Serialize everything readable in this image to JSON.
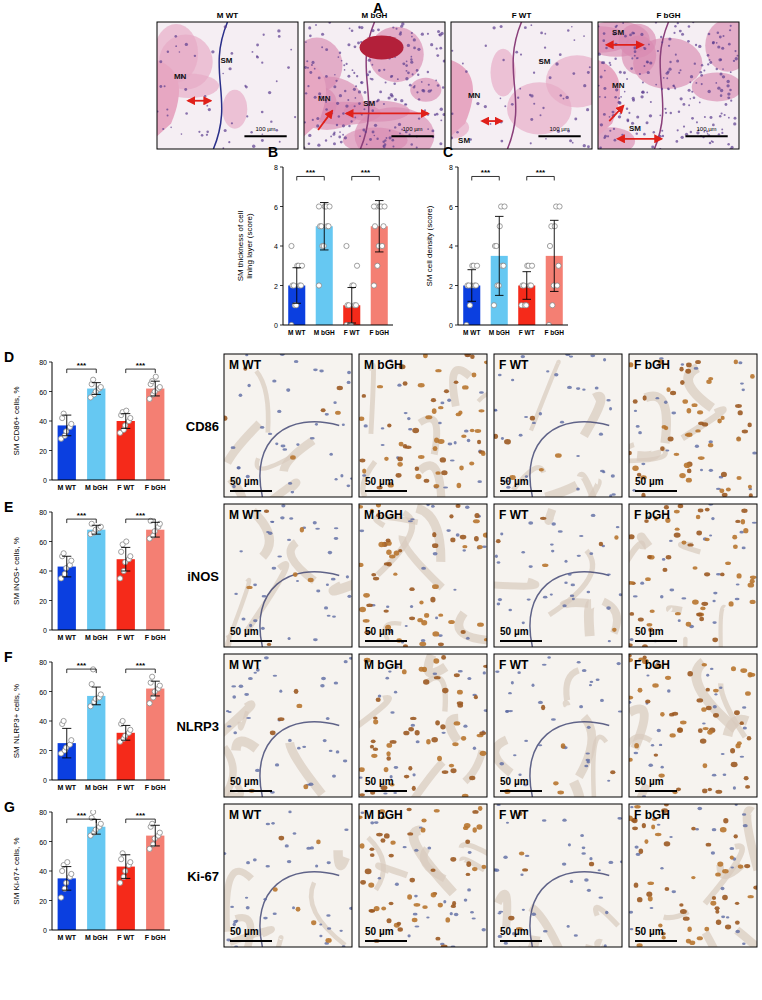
{
  "chart_data": [
    {
      "type": "bar",
      "panel_label": "B",
      "y_label": "SM thickness of cell lining layer (score)",
      "categories": [
        "M  WT",
        "M bGH",
        "F WT",
        "F bGH"
      ],
      "values": [
        2,
        5,
        1,
        5
      ],
      "errors": [
        0.9,
        1.2,
        0.9,
        1.3
      ],
      "points": [
        [
          0,
          1,
          1,
          2,
          2,
          2,
          2,
          3,
          3,
          3,
          4
        ],
        [
          2,
          4,
          4,
          5,
          5,
          5,
          5,
          6,
          6,
          6,
          6
        ],
        [
          0,
          0,
          0,
          1,
          1,
          1,
          1,
          2,
          2,
          3,
          4
        ],
        [
          2,
          3,
          4,
          4,
          5,
          5,
          6,
          6,
          6,
          6,
          6
        ]
      ],
      "colors": [
        "#0b3fe0",
        "#66c8f2",
        "#f52a1a",
        "#f47f73"
      ],
      "ylim": [
        0,
        8
      ],
      "yticks": [
        0,
        2,
        4,
        6,
        8
      ],
      "significance": [
        "***",
        "***"
      ]
    },
    {
      "type": "bar",
      "panel_label": "C",
      "y_label": "SM cell density (score)",
      "categories": [
        "M  WT",
        "M bGH",
        "F WT",
        "F bGH"
      ],
      "values": [
        2,
        3.5,
        2,
        3.5
      ],
      "errors": [
        0.8,
        2.0,
        0.7,
        1.8
      ],
      "points": [
        [
          0,
          1,
          2,
          2,
          2,
          2,
          2,
          3,
          3,
          3
        ],
        [
          1,
          2,
          2,
          3,
          3,
          4,
          4,
          5,
          6,
          6
        ],
        [
          1,
          1,
          1,
          2,
          2,
          2,
          2,
          3,
          3,
          3
        ],
        [
          0,
          1,
          2,
          2,
          3,
          4,
          5,
          5,
          6,
          6
        ]
      ],
      "colors": [
        "#0b3fe0",
        "#66c8f2",
        "#f52a1a",
        "#f47f73"
      ],
      "ylim": [
        0,
        8
      ],
      "yticks": [
        0,
        2,
        4,
        6,
        8
      ],
      "significance": [
        "***",
        "***"
      ]
    },
    {
      "type": "bar",
      "panel_label": "D",
      "y_label": "SM CD86+ cells, %",
      "categories": [
        "M  WT",
        "M bGH",
        "F WT",
        "F bGH"
      ],
      "values": [
        37,
        62,
        40,
        62
      ],
      "errors": [
        7,
        4,
        5,
        5
      ],
      "points": [
        [
          28,
          30,
          33,
          36,
          38,
          42,
          45
        ],
        [
          56,
          58,
          60,
          62,
          63,
          65,
          68
        ],
        [
          32,
          34,
          37,
          40,
          42,
          44,
          46,
          47
        ],
        [
          55,
          58,
          60,
          62,
          63,
          65,
          67,
          70
        ]
      ],
      "colors": [
        "#0b3fe0",
        "#66c8f2",
        "#f52a1a",
        "#f47f73"
      ],
      "ylim": [
        0,
        80
      ],
      "yticks": [
        0,
        20,
        40,
        60,
        80
      ],
      "significance": [
        "***",
        "***"
      ]
    },
    {
      "type": "bar",
      "panel_label": "E",
      "y_label": "SM iNOS+ cells, %",
      "categories": [
        "M  WT",
        "M bGH",
        "F WT",
        "F bGH"
      ],
      "values": [
        43,
        68,
        48,
        68
      ],
      "errors": [
        7,
        3,
        8,
        5
      ],
      "points": [
        [
          35,
          38,
          42,
          44,
          47,
          50,
          52
        ],
        [
          65,
          66,
          68,
          69,
          70,
          72
        ],
        [
          35,
          40,
          46,
          48,
          50,
          53,
          58,
          60
        ],
        [
          62,
          64,
          67,
          70,
          72,
          74
        ]
      ],
      "colors": [
        "#0b3fe0",
        "#66c8f2",
        "#f52a1a",
        "#f47f73"
      ],
      "ylim": [
        0,
        80
      ],
      "yticks": [
        0,
        20,
        40,
        60,
        80
      ],
      "significance": [
        "***",
        "***"
      ]
    },
    {
      "type": "bar",
      "panel_label": "F",
      "y_label": "SM NLRP3+ cells, %",
      "categories": [
        "M  WT",
        "M bGH",
        "F WT",
        "F bGH"
      ],
      "values": [
        25,
        57,
        32,
        62
      ],
      "errors": [
        10,
        6,
        5,
        5
      ],
      "points": [
        [
          18,
          20,
          22,
          24,
          27,
          38,
          40
        ],
        [
          50,
          53,
          55,
          56,
          58,
          65,
          75
        ],
        [
          26,
          28,
          30,
          32,
          34,
          38,
          40
        ],
        [
          52,
          56,
          60,
          62,
          64,
          66,
          70
        ]
      ],
      "colors": [
        "#0b3fe0",
        "#66c8f2",
        "#f52a1a",
        "#f47f73"
      ],
      "ylim": [
        0,
        80
      ],
      "yticks": [
        0,
        20,
        40,
        60,
        80
      ],
      "significance": [
        "***",
        "***"
      ]
    },
    {
      "type": "bar",
      "panel_label": "G",
      "y_label": "SM Ki-67+ cells, %",
      "categories": [
        "M  WT",
        "M bGH",
        "F WT",
        "F bGH"
      ],
      "values": [
        35,
        70,
        43,
        64
      ],
      "errors": [
        8,
        5,
        8,
        7
      ],
      "points": [
        [
          22,
          28,
          32,
          36,
          38,
          40,
          44,
          46
        ],
        [
          64,
          66,
          68,
          70,
          72,
          76,
          80
        ],
        [
          32,
          36,
          40,
          44,
          46,
          48,
          52
        ],
        [
          55,
          58,
          62,
          64,
          66,
          70,
          72
        ]
      ],
      "colors": [
        "#0b3fe0",
        "#66c8f2",
        "#f52a1a",
        "#f47f73"
      ],
      "ylim": [
        0,
        80
      ],
      "yticks": [
        0,
        20,
        40,
        60,
        80
      ],
      "significance": [
        "***",
        "***"
      ]
    }
  ],
  "panel_a": {
    "panel_label": "A",
    "images": [
      {
        "title": "M WT",
        "labels": [
          "SM",
          "MN"
        ],
        "scale_bar": "100 µm"
      },
      {
        "title": "M bGH",
        "labels": [
          "MN",
          "SM"
        ],
        "scale_bar": "100 µm"
      },
      {
        "title": "F WT",
        "labels": [
          "SM",
          "MN",
          "SM"
        ],
        "scale_bar": "100 µm"
      },
      {
        "title": "F bGH",
        "labels": [
          "SM",
          "MN",
          "SM"
        ],
        "scale_bar": "100 µm"
      }
    ]
  },
  "ihc": {
    "columns": [
      "M WT",
      "M bGH",
      "F WT",
      "F bGH"
    ],
    "rows": [
      {
        "marker": "CD86",
        "scale_bar": "50 µm"
      },
      {
        "marker": "iNOS",
        "scale_bar": "50 µm"
      },
      {
        "marker": "NLRP3",
        "scale_bar": "50 µm"
      },
      {
        "marker": "Ki-67",
        "scale_bar": "50 µm"
      }
    ]
  }
}
